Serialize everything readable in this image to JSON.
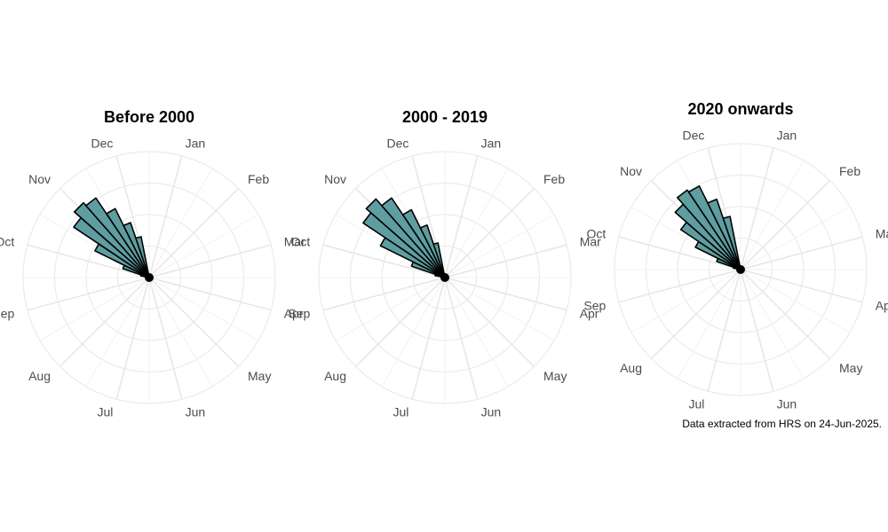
{
  "colors": {
    "bar_fill": "#5f9ea0",
    "bar_stroke": "#000000",
    "grid": "#ebebeb"
  },
  "caption": "Data extracted from HRS on 24-Jun-2025.",
  "chart_data": [
    {
      "type": "bar",
      "polar": true,
      "title": "Before 2000",
      "categories": [
        "May",
        "Jun",
        "Jul"
      ],
      "month_labels": [
        "Jan",
        "Feb",
        "Mar",
        "Apr",
        "May",
        "Jun",
        "Jul",
        "Aug",
        "Sep",
        "Oct",
        "Nov",
        "Dec"
      ],
      "x": [
        18.0,
        18.5,
        19.0,
        19.5,
        20.0,
        20.5,
        21.0,
        21.5,
        22.0
      ],
      "values": [
        0.07,
        0.22,
        0.48,
        0.72,
        0.79,
        0.76,
        0.61,
        0.46,
        0.33
      ],
      "grid": true
    },
    {
      "type": "bar",
      "polar": true,
      "title": "2000 - 2019",
      "categories": [
        "May",
        "Jun",
        "Jul"
      ],
      "month_labels": [
        "Jan",
        "Feb",
        "Mar",
        "Apr",
        "May",
        "Jun",
        "Jul",
        "Aug",
        "Sep",
        "Oct",
        "Nov",
        "Dec"
      ],
      "x": [
        18.0,
        18.5,
        19.0,
        19.5,
        20.0,
        20.5,
        21.0,
        21.5,
        22.0
      ],
      "values": [
        0.08,
        0.28,
        0.57,
        0.78,
        0.83,
        0.76,
        0.6,
        0.44,
        0.28
      ],
      "grid": true
    },
    {
      "type": "bar",
      "polar": true,
      "title": "2020 onwards",
      "categories": [
        "May",
        "Jun",
        "Jul"
      ],
      "month_labels": [
        "Jan",
        "Feb",
        "Mar",
        "Apr",
        "May",
        "Jun",
        "Jul",
        "Aug",
        "Sep",
        "Oct",
        "Nov",
        "Dec"
      ],
      "x": [
        18.0,
        18.5,
        19.0,
        19.5,
        20.0,
        20.5,
        21.0,
        21.5,
        22.0
      ],
      "values": [
        0.06,
        0.2,
        0.4,
        0.57,
        0.69,
        0.76,
        0.74,
        0.59,
        0.43
      ],
      "grid": true
    }
  ]
}
